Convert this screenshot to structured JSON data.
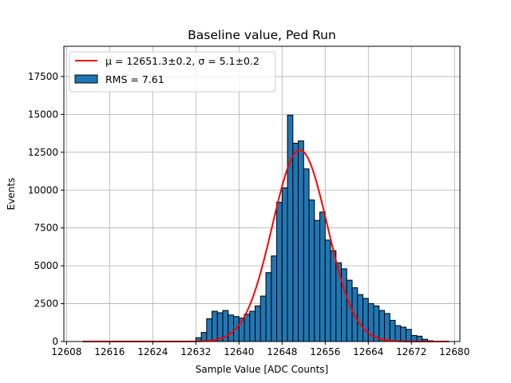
{
  "chart_data": {
    "type": "bar",
    "title": "Baseline value, Ped Run",
    "xlabel": "Sample Value [ADC Counts]",
    "ylabel": "Events",
    "xlim": [
      12607.5,
      12681
    ],
    "ylim": [
      0,
      19500
    ],
    "grid": true,
    "legend_position": "top-left",
    "xticks": [
      12608,
      12616,
      12624,
      12632,
      12640,
      12648,
      12656,
      12664,
      12672,
      12680
    ],
    "yticks": [
      0,
      2500,
      5000,
      7500,
      10000,
      12500,
      15000,
      17500
    ],
    "histogram": {
      "bin_width": 1,
      "bin_starts": [
        12632,
        12633,
        12634,
        12635,
        12636,
        12637,
        12638,
        12639,
        12640,
        12641,
        12642,
        12643,
        12644,
        12645,
        12646,
        12647,
        12648,
        12649,
        12650,
        12651,
        12652,
        12653,
        12654,
        12655,
        12656,
        12657,
        12658,
        12659,
        12660,
        12661,
        12662,
        12663,
        12664,
        12665,
        12666,
        12667,
        12668,
        12669,
        12670,
        12671,
        12672,
        12673,
        12674,
        12675
      ],
      "counts": [
        250,
        600,
        1500,
        2000,
        1900,
        2050,
        1750,
        1650,
        1550,
        1800,
        2000,
        2350,
        3000,
        4550,
        5650,
        9200,
        10150,
        14950,
        13100,
        13250,
        11400,
        9350,
        8000,
        8550,
        6700,
        6000,
        5200,
        4800,
        4050,
        3550,
        3100,
        2850,
        2500,
        2350,
        2050,
        1850,
        1400,
        1050,
        950,
        800,
        400,
        350,
        150,
        50
      ],
      "color": "#1f77b4",
      "edge_color": "#000000",
      "legend_label": "RMS = 7.61"
    },
    "fit": {
      "type": "gaussian",
      "mu": 12651.3,
      "sigma": 5.1,
      "amplitude": 12650,
      "x_range": [
        12611,
        12679
      ],
      "color": "#ff0000",
      "legend_label": "μ = 12651.3±0.2, σ = 5.1±0.2"
    }
  }
}
